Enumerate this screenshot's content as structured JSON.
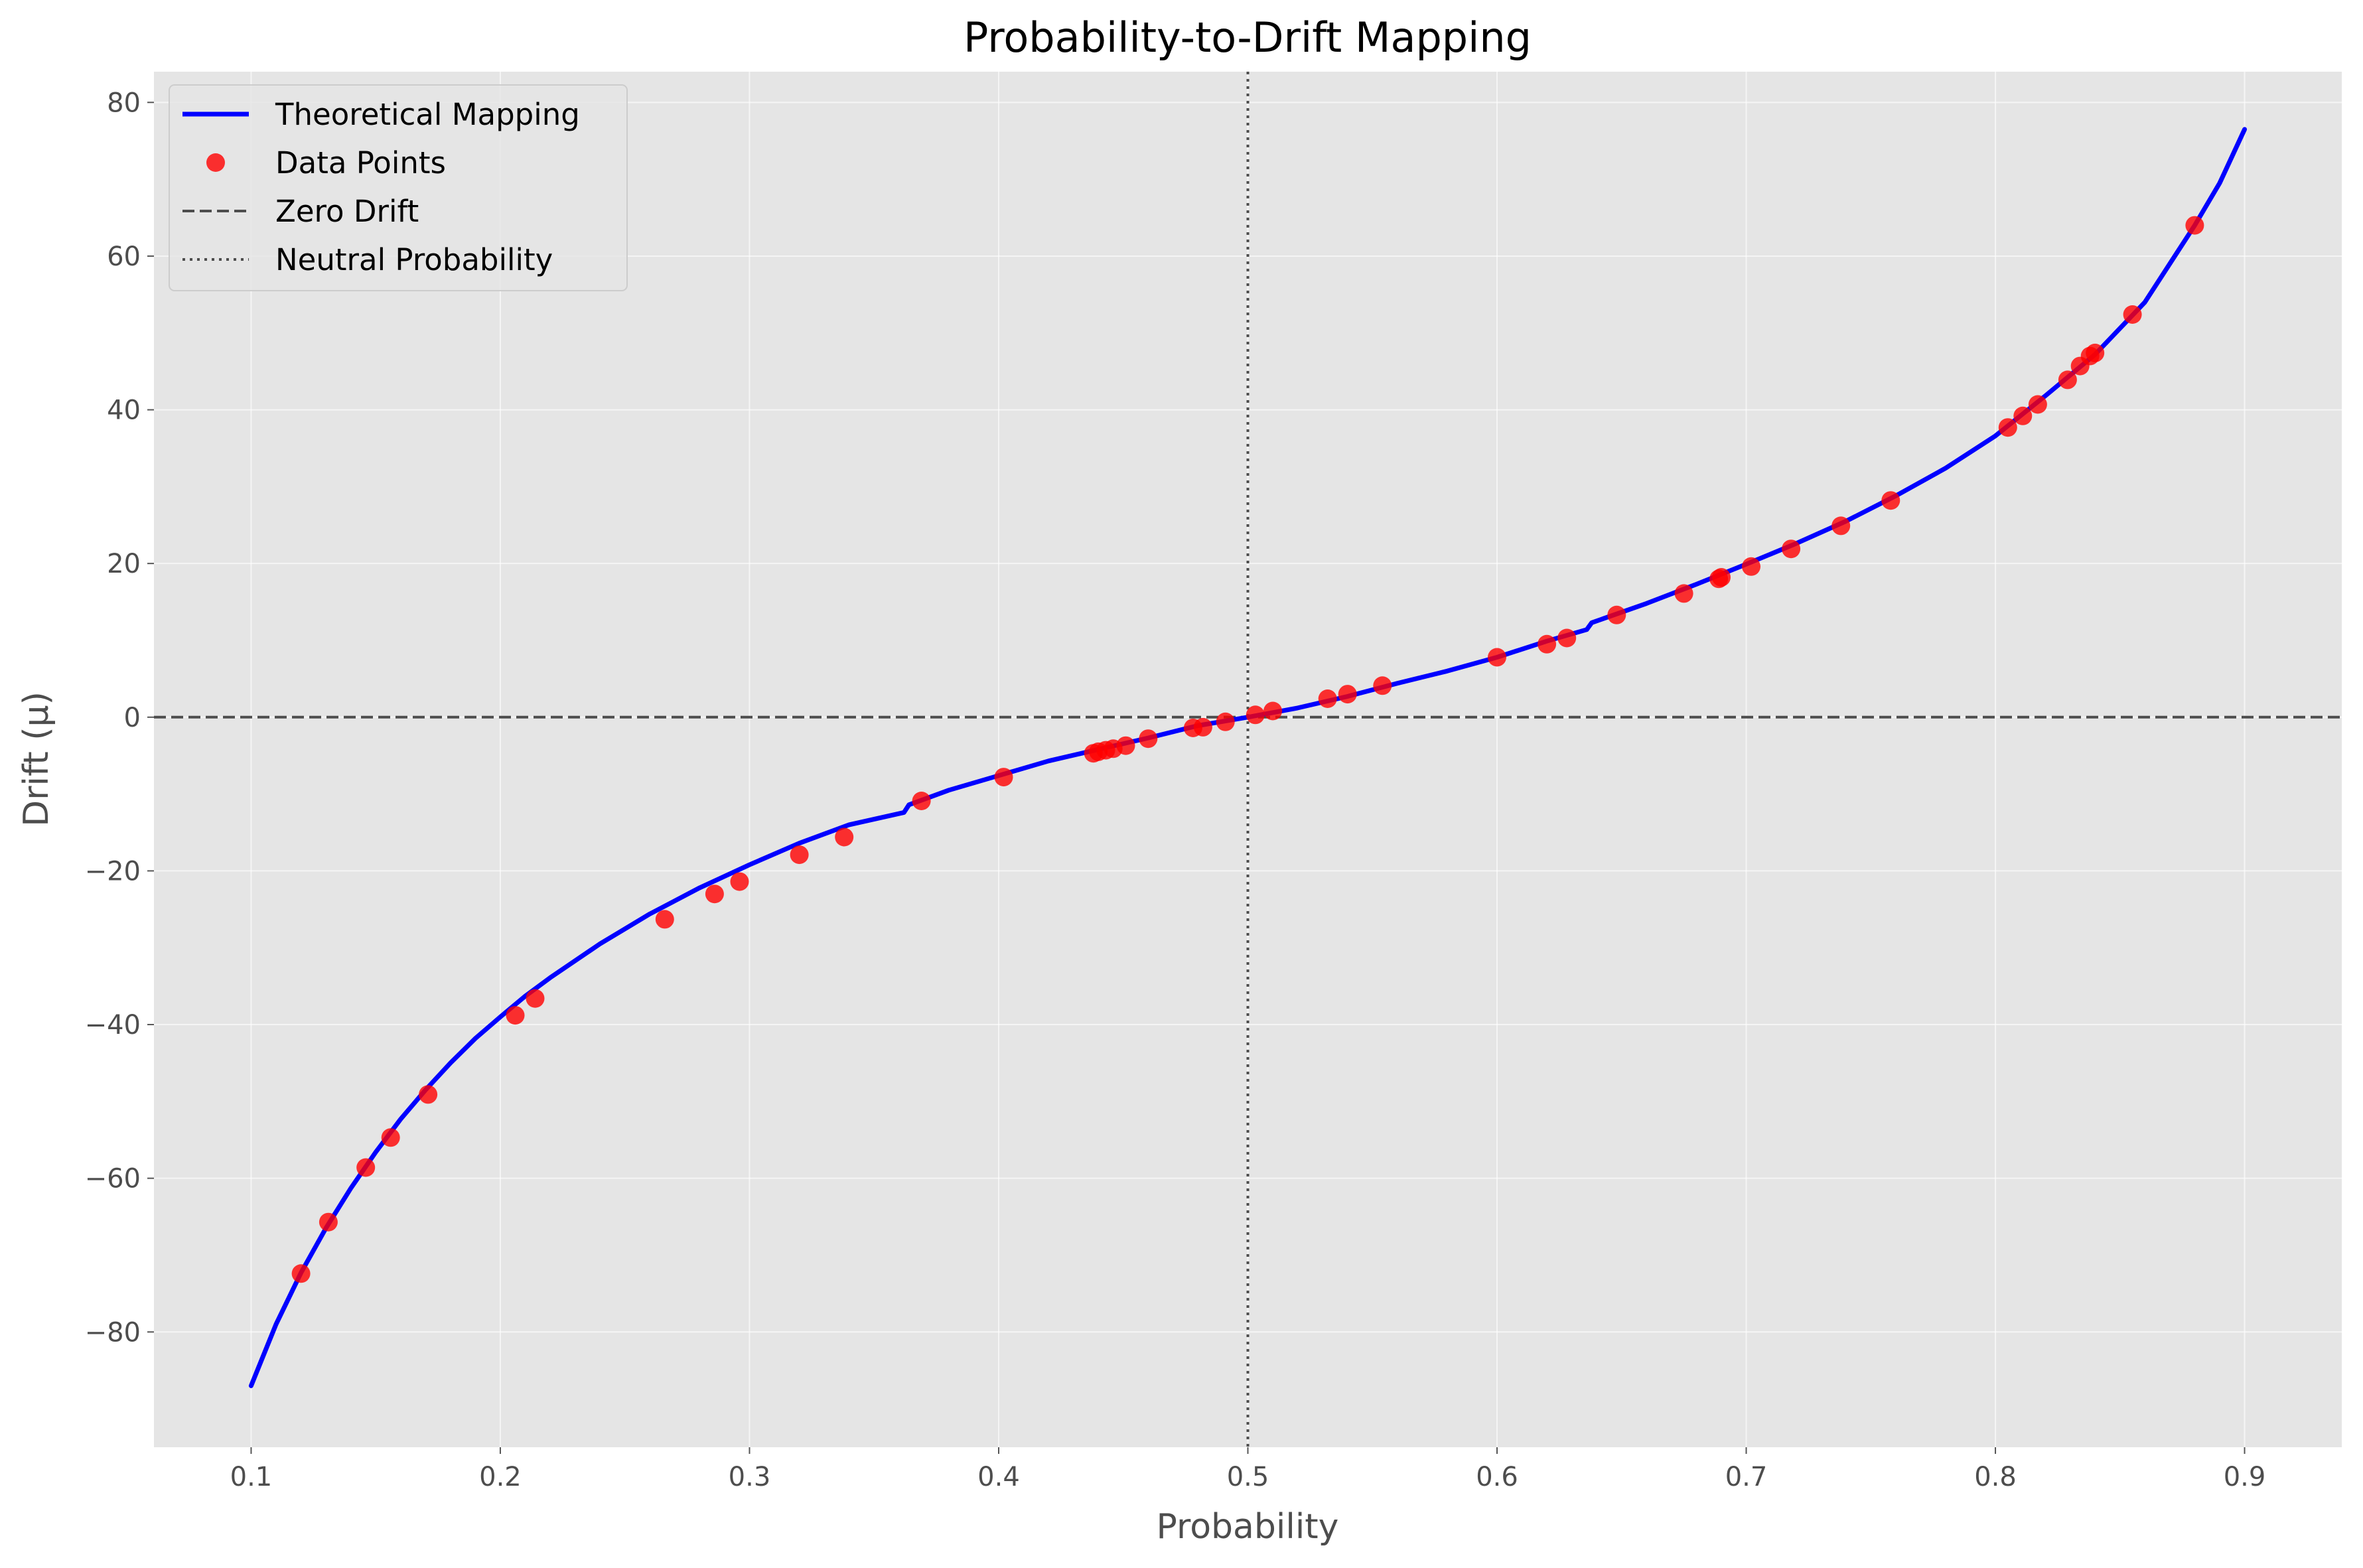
{
  "chart_data": {
    "type": "line",
    "title": "Probability-to-Drift Mapping",
    "xlabel": "Probability",
    "ylabel": "Drift (μ)",
    "xlim": [
      0.061,
      0.939
    ],
    "ylim": [
      -95,
      84
    ],
    "x_ticks": [
      0.1,
      0.2,
      0.3,
      0.4,
      0.5,
      0.6,
      0.7,
      0.8,
      0.9
    ],
    "x_tick_labels": [
      "0.1",
      "0.2",
      "0.3",
      "0.4",
      "0.5",
      "0.6",
      "0.7",
      "0.8",
      "0.9"
    ],
    "y_ticks": [
      -80,
      -60,
      -40,
      -20,
      0,
      20,
      40,
      60,
      80
    ],
    "y_tick_labels": [
      "−80",
      "−60",
      "−40",
      "−20",
      "0",
      "20",
      "40",
      "60",
      "80"
    ],
    "grid": true,
    "legend_position": "top-left",
    "series": [
      {
        "name": "Theoretical Mapping",
        "kind": "line",
        "color": "#0000ff",
        "x": [
          0.1,
          0.11,
          0.12,
          0.13,
          0.14,
          0.15,
          0.16,
          0.17,
          0.18,
          0.19,
          0.2,
          0.21,
          0.22,
          0.24,
          0.26,
          0.28,
          0.3,
          0.32,
          0.34,
          0.362,
          0.364,
          0.38,
          0.4,
          0.42,
          0.44,
          0.46,
          0.48,
          0.5,
          0.52,
          0.54,
          0.56,
          0.58,
          0.6,
          0.62,
          0.636,
          0.638,
          0.66,
          0.68,
          0.7,
          0.72,
          0.74,
          0.76,
          0.78,
          0.8,
          0.82,
          0.84,
          0.86,
          0.88,
          0.89,
          0.9
        ],
        "y": [
          -87,
          -79,
          -72.3,
          -66.5,
          -61.3,
          -56.6,
          -52.3,
          -48.5,
          -45,
          -41.8,
          -39,
          -36.3,
          -33.9,
          -29.5,
          -25.6,
          -22.2,
          -19.2,
          -16.4,
          -14,
          -12.4,
          -11.4,
          -9.5,
          -7.6,
          -5.7,
          -4.2,
          -2.7,
          -1.1,
          0,
          1.2,
          2.7,
          4.4,
          6,
          7.8,
          9.9,
          11.4,
          12.3,
          14.8,
          17.3,
          19.9,
          22.6,
          25.5,
          28.8,
          32.4,
          36.6,
          41.8,
          47.2,
          54,
          64,
          69.5,
          76.5
        ]
      },
      {
        "name": "Data Points",
        "kind": "scatter",
        "color": "#ff0000",
        "x": [
          0.12,
          0.131,
          0.146,
          0.156,
          0.171,
          0.206,
          0.214,
          0.266,
          0.286,
          0.296,
          0.32,
          0.338,
          0.369,
          0.402,
          0.438,
          0.44,
          0.443,
          0.446,
          0.451,
          0.46,
          0.478,
          0.482,
          0.491,
          0.503,
          0.51,
          0.532,
          0.54,
          0.554,
          0.6,
          0.62,
          0.628,
          0.648,
          0.675,
          0.689,
          0.69,
          0.702,
          0.718,
          0.738,
          0.758,
          0.805,
          0.811,
          0.817,
          0.829,
          0.834,
          0.838,
          0.84,
          0.855,
          0.88
        ],
        "y": [
          -72.4,
          -65.7,
          -58.6,
          -54.7,
          -49.1,
          -38.8,
          -36.6,
          -26.3,
          -23,
          -21.4,
          -17.9,
          -15.6,
          -10.9,
          -7.8,
          -4.7,
          -4.5,
          -4.3,
          -4.1,
          -3.7,
          -2.8,
          -1.4,
          -1.3,
          -0.6,
          0.3,
          0.8,
          2.4,
          3,
          4.1,
          7.8,
          9.5,
          10.3,
          13.3,
          16.1,
          18,
          18.2,
          19.6,
          21.9,
          24.9,
          28.2,
          37.7,
          39.2,
          40.7,
          43.9,
          45.7,
          47,
          47.4,
          52.4,
          64
        ]
      },
      {
        "name": "Zero Drift",
        "kind": "hline",
        "color": "#4d4d4d",
        "y": 0,
        "dash": "dashed"
      },
      {
        "name": "Neutral Probability",
        "kind": "vline",
        "color": "#4d4d4d",
        "x": 0.5,
        "dash": "dotted"
      }
    ]
  }
}
